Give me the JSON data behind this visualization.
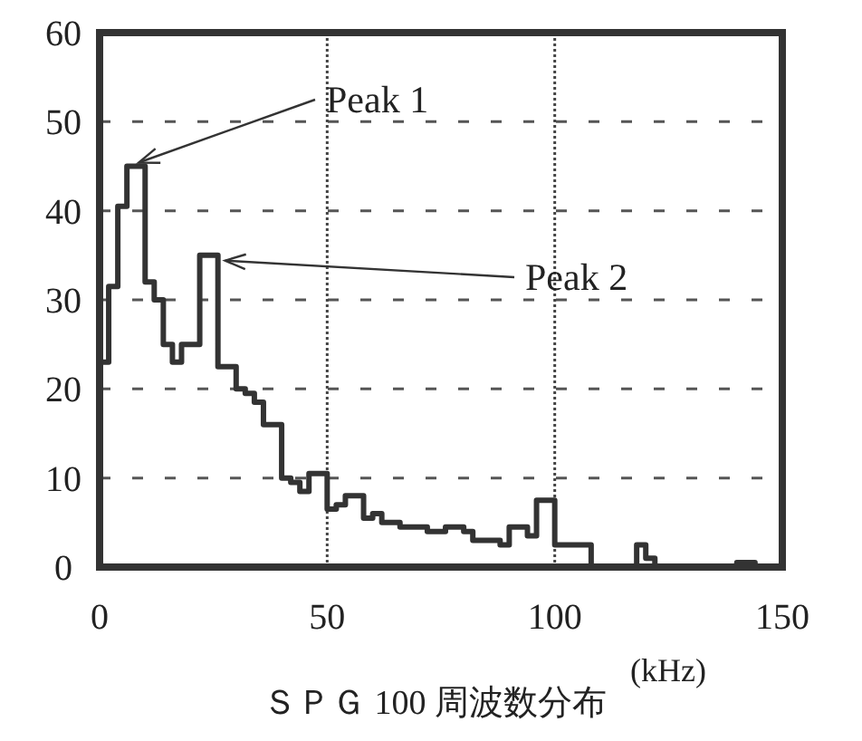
{
  "chart_data": {
    "type": "histogram",
    "xlabel": "ＳＰＧ 100 周波数分布",
    "annotations": [
      {
        "text": "Peak 1",
        "x": 7,
        "y": 45
      },
      {
        "text": "Peak 2",
        "x": 26,
        "y": 34
      },
      "(kHz)"
    ],
    "bins": [
      0,
      2,
      4,
      6,
      8,
      10,
      12,
      14,
      16,
      18,
      20,
      22,
      24,
      26,
      28,
      30,
      32,
      34,
      36,
      38,
      40,
      42,
      44,
      46,
      48,
      50,
      52,
      54,
      56,
      58,
      60,
      62,
      64,
      66,
      68,
      70,
      72,
      74,
      76,
      78,
      80,
      82,
      84,
      86,
      88,
      90,
      92,
      94,
      96,
      98,
      100,
      102,
      104,
      106,
      108,
      110,
      112,
      114,
      116,
      118,
      120,
      122,
      124,
      126,
      128,
      130,
      132,
      134,
      136,
      138,
      140,
      142,
      144,
      146,
      148,
      150
    ],
    "values": [
      23,
      31.5,
      40.5,
      45,
      45,
      32,
      30,
      25,
      23,
      25,
      25,
      35,
      35,
      22.5,
      22.5,
      20,
      19.5,
      18.5,
      16,
      16,
      10,
      9.5,
      8.5,
      10.5,
      10.5,
      6.5,
      7,
      8,
      8,
      5.5,
      6,
      5,
      5,
      4.5,
      4.5,
      4.5,
      4,
      4,
      4.5,
      4.5,
      4,
      3,
      3,
      3,
      2.5,
      4.5,
      4.5,
      3.5,
      7.5,
      7.5,
      2.5,
      2.5,
      2.5,
      2.5,
      0,
      0,
      0,
      0,
      0,
      2.5,
      1,
      0,
      0,
      0,
      0,
      0,
      0,
      0,
      0,
      0,
      0.5,
      0.5,
      0,
      0,
      0
    ],
    "color": "#333333",
    "xlim": [
      0,
      150
    ],
    "xticks": [
      0,
      50,
      100,
      150
    ],
    "ylim": [
      0,
      60
    ],
    "yticks": [
      0,
      10,
      20,
      30,
      40,
      50,
      60
    ],
    "grid": true
  }
}
